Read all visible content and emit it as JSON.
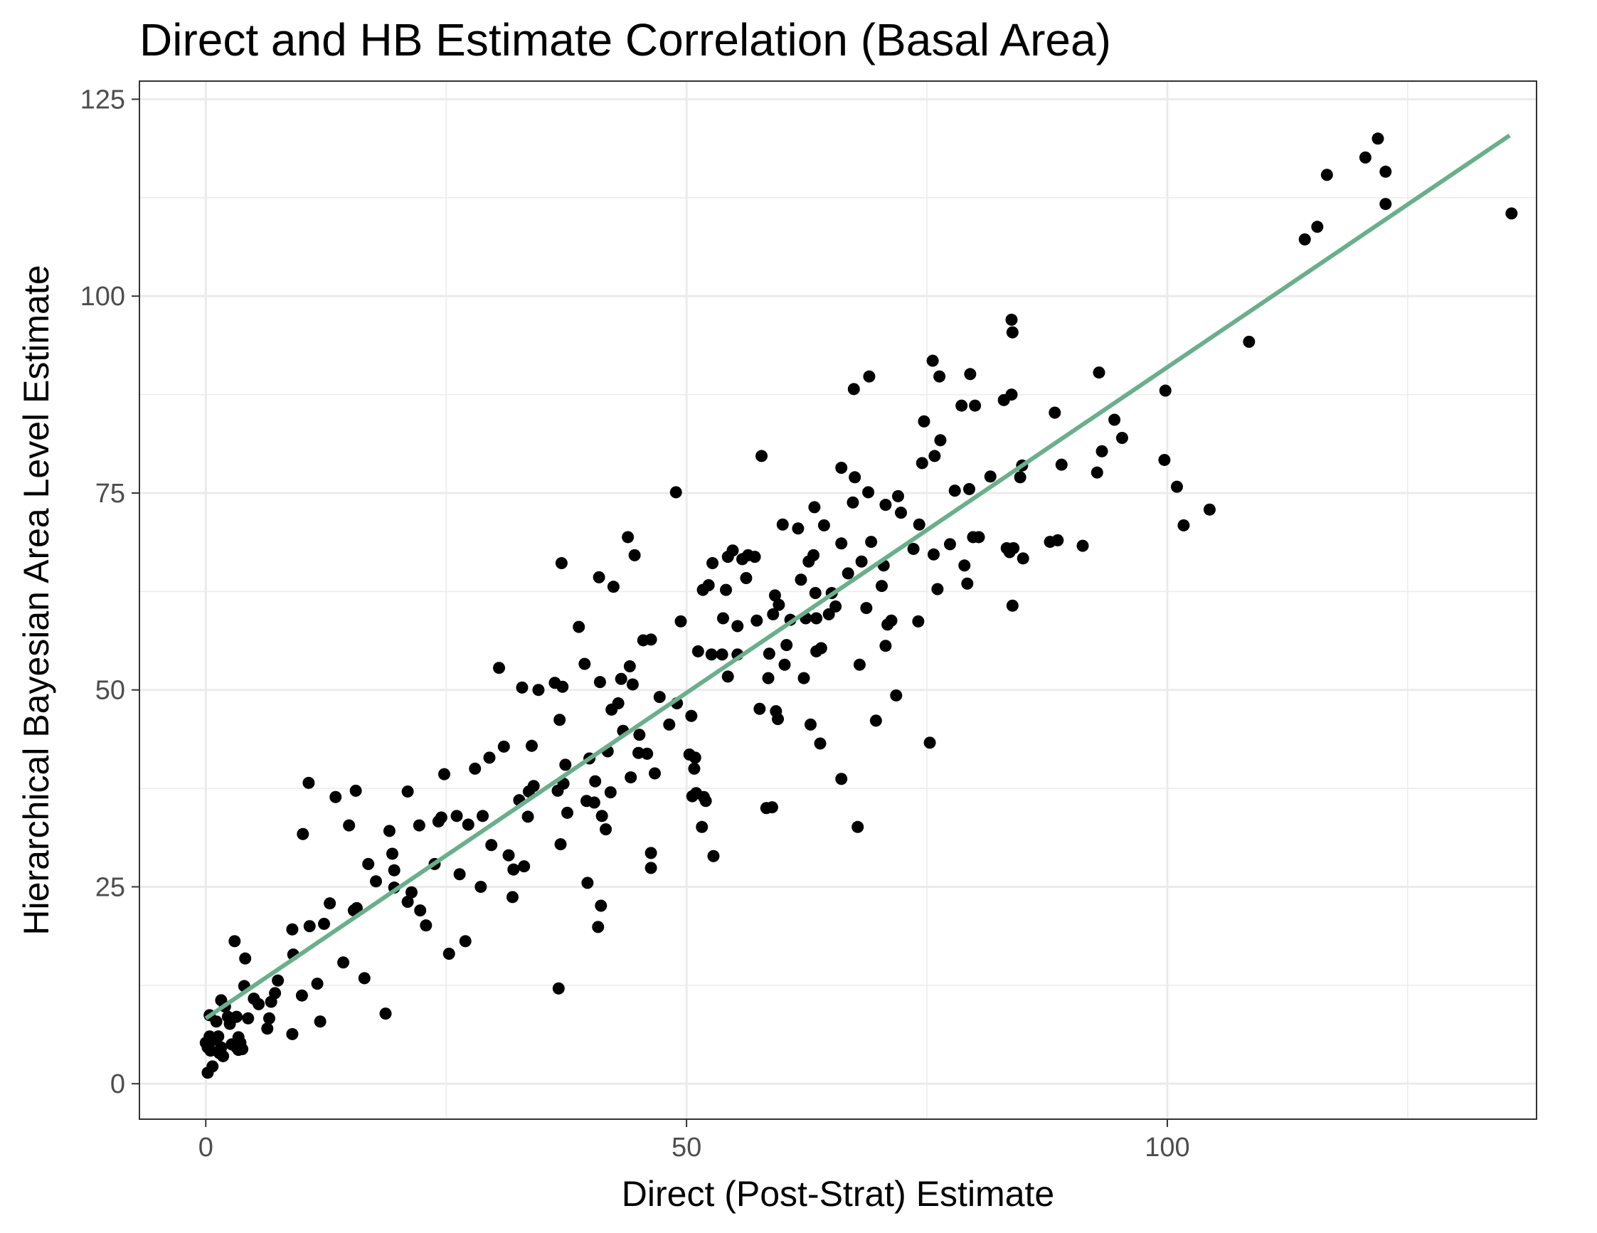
{
  "chart_data": {
    "type": "scatter",
    "title": "Direct and HB Estimate Correlation (Basal Area)",
    "xlabel": "Direct (Post-Strat) Estimate",
    "ylabel": "Hierarchical Bayesian Area Level Estimate",
    "xlim": [
      -6.9,
      138.4
    ],
    "ylim": [
      -4.5,
      127.3
    ],
    "x_ticks": [
      0,
      50,
      100
    ],
    "x_tick_labels": [
      "0",
      "50",
      "100"
    ],
    "y_ticks": [
      0,
      25,
      50,
      75,
      100,
      125
    ],
    "y_tick_labels": [
      "0",
      "25",
      "50",
      "75",
      "100",
      "125"
    ],
    "grid": true,
    "colors": {
      "points": "#000000",
      "fit_line": "#6aaf8c",
      "grid": "#ebebeb",
      "panel_border": "#333333"
    },
    "fit_line": {
      "x": [
        0,
        135.6
      ],
      "y": [
        8.3,
        120.4
      ]
    },
    "points": [
      [
        0.0,
        5.2
      ],
      [
        0.2,
        4.6
      ],
      [
        0.2,
        1.4
      ],
      [
        0.4,
        8.7
      ],
      [
        0.4,
        6.0
      ],
      [
        0.5,
        4.2
      ],
      [
        0.7,
        2.2
      ],
      [
        0.9,
        5.6
      ],
      [
        1.1,
        7.9
      ],
      [
        1.3,
        6.0
      ],
      [
        1.4,
        3.9
      ],
      [
        1.6,
        4.6
      ],
      [
        1.6,
        10.6
      ],
      [
        1.8,
        3.5
      ],
      [
        2.0,
        9.8
      ],
      [
        2.3,
        8.5
      ],
      [
        2.5,
        7.6
      ],
      [
        2.7,
        5.0
      ],
      [
        3.0,
        18.1
      ],
      [
        3.2,
        4.6
      ],
      [
        3.2,
        8.5
      ],
      [
        3.4,
        5.9
      ],
      [
        3.4,
        4.3
      ],
      [
        3.6,
        5.2
      ],
      [
        3.8,
        4.4
      ],
      [
        4.0,
        12.4
      ],
      [
        4.1,
        15.9
      ],
      [
        4.4,
        8.3
      ],
      [
        5.0,
        10.8
      ],
      [
        5.5,
        10.1
      ],
      [
        6.4,
        7.0
      ],
      [
        6.6,
        8.3
      ],
      [
        6.8,
        10.4
      ],
      [
        7.2,
        11.5
      ],
      [
        7.5,
        13.1
      ],
      [
        9.0,
        6.3
      ],
      [
        9.0,
        19.6
      ],
      [
        9.1,
        16.4
      ],
      [
        10.0,
        11.2
      ],
      [
        10.1,
        31.7
      ],
      [
        10.7,
        38.2
      ],
      [
        10.8,
        20.0
      ],
      [
        11.6,
        12.7
      ],
      [
        11.9,
        7.9
      ],
      [
        12.3,
        20.3
      ],
      [
        12.9,
        22.9
      ],
      [
        13.5,
        36.4
      ],
      [
        14.3,
        15.4
      ],
      [
        14.9,
        32.8
      ],
      [
        15.4,
        22.0
      ],
      [
        15.6,
        37.2
      ],
      [
        15.7,
        22.3
      ],
      [
        16.5,
        13.4
      ],
      [
        16.9,
        27.9
      ],
      [
        17.7,
        25.7
      ],
      [
        18.7,
        8.9
      ],
      [
        19.1,
        32.1
      ],
      [
        19.4,
        29.2
      ],
      [
        19.6,
        27.1
      ],
      [
        19.6,
        24.9
      ],
      [
        21.0,
        23.1
      ],
      [
        21.0,
        37.1
      ],
      [
        21.4,
        24.3
      ],
      [
        22.2,
        32.8
      ],
      [
        22.3,
        22.0
      ],
      [
        22.9,
        20.1
      ],
      [
        23.8,
        27.9
      ],
      [
        24.2,
        33.3
      ],
      [
        24.5,
        33.8
      ],
      [
        24.8,
        39.3
      ],
      [
        25.3,
        16.5
      ],
      [
        26.1,
        34.0
      ],
      [
        26.4,
        26.6
      ],
      [
        27.0,
        18.1
      ],
      [
        27.3,
        32.9
      ],
      [
        28.0,
        40.0
      ],
      [
        28.6,
        25.0
      ],
      [
        28.8,
        34.0
      ],
      [
        29.5,
        41.4
      ],
      [
        29.7,
        30.3
      ],
      [
        30.5,
        52.8
      ],
      [
        31.0,
        42.8
      ],
      [
        31.5,
        29.0
      ],
      [
        31.9,
        23.7
      ],
      [
        32.0,
        27.2
      ],
      [
        32.6,
        36.0
      ],
      [
        32.9,
        50.3
      ],
      [
        33.1,
        27.6
      ],
      [
        33.5,
        33.9
      ],
      [
        33.6,
        37.1
      ],
      [
        33.9,
        42.9
      ],
      [
        34.1,
        37.8
      ],
      [
        34.6,
        50.0
      ],
      [
        36.3,
        50.9
      ],
      [
        36.6,
        37.2
      ],
      [
        36.7,
        12.1
      ],
      [
        36.8,
        46.2
      ],
      [
        36.9,
        30.4
      ],
      [
        37.0,
        66.1
      ],
      [
        37.1,
        50.4
      ],
      [
        37.2,
        38.1
      ],
      [
        37.4,
        40.5
      ],
      [
        37.6,
        34.4
      ],
      [
        38.8,
        58.0
      ],
      [
        39.4,
        53.3
      ],
      [
        39.6,
        35.9
      ],
      [
        39.7,
        25.5
      ],
      [
        39.9,
        41.3
      ],
      [
        40.4,
        35.7
      ],
      [
        40.5,
        38.4
      ],
      [
        40.8,
        19.9
      ],
      [
        40.9,
        64.3
      ],
      [
        41.0,
        51.0
      ],
      [
        41.1,
        22.6
      ],
      [
        41.2,
        34.0
      ],
      [
        41.6,
        32.3
      ],
      [
        41.8,
        42.2
      ],
      [
        42.1,
        37.0
      ],
      [
        42.2,
        47.5
      ],
      [
        42.4,
        63.1
      ],
      [
        42.9,
        48.3
      ],
      [
        43.2,
        51.4
      ],
      [
        43.4,
        44.8
      ],
      [
        43.9,
        69.4
      ],
      [
        44.1,
        53.0
      ],
      [
        44.2,
        38.9
      ],
      [
        44.4,
        50.7
      ],
      [
        44.6,
        67.1
      ],
      [
        45.0,
        42.0
      ],
      [
        45.1,
        44.3
      ],
      [
        45.5,
        56.3
      ],
      [
        45.9,
        41.9
      ],
      [
        46.3,
        56.4
      ],
      [
        46.3,
        29.3
      ],
      [
        46.3,
        27.4
      ],
      [
        46.7,
        39.4
      ],
      [
        47.2,
        49.1
      ],
      [
        48.2,
        45.6
      ],
      [
        48.9,
        75.1
      ],
      [
        49.0,
        48.3
      ],
      [
        49.4,
        58.7
      ],
      [
        50.3,
        41.8
      ],
      [
        50.5,
        46.7
      ],
      [
        50.6,
        36.5
      ],
      [
        50.8,
        40.0
      ],
      [
        50.9,
        41.4
      ],
      [
        51.0,
        36.9
      ],
      [
        51.2,
        54.9
      ],
      [
        51.6,
        32.6
      ],
      [
        51.7,
        62.7
      ],
      [
        51.8,
        36.4
      ],
      [
        52.0,
        35.9
      ],
      [
        52.3,
        63.3
      ],
      [
        52.6,
        54.5
      ],
      [
        52.7,
        66.1
      ],
      [
        52.8,
        28.9
      ],
      [
        53.7,
        54.5
      ],
      [
        53.8,
        59.1
      ],
      [
        54.1,
        62.7
      ],
      [
        54.3,
        51.7
      ],
      [
        54.3,
        66.9
      ],
      [
        54.8,
        67.7
      ],
      [
        55.3,
        54.5
      ],
      [
        55.3,
        58.1
      ],
      [
        55.8,
        66.6
      ],
      [
        56.2,
        64.2
      ],
      [
        56.4,
        67.1
      ],
      [
        57.1,
        66.9
      ],
      [
        57.3,
        58.8
      ],
      [
        57.6,
        47.6
      ],
      [
        57.8,
        79.7
      ],
      [
        58.3,
        35.0
      ],
      [
        58.5,
        51.5
      ],
      [
        58.6,
        54.6
      ],
      [
        58.9,
        35.1
      ],
      [
        59.0,
        59.6
      ],
      [
        59.2,
        62.0
      ],
      [
        59.3,
        47.3
      ],
      [
        59.5,
        46.3
      ],
      [
        59.6,
        60.8
      ],
      [
        60.0,
        71.0
      ],
      [
        60.2,
        53.2
      ],
      [
        60.4,
        55.7
      ],
      [
        60.8,
        58.9
      ],
      [
        61.6,
        70.5
      ],
      [
        61.9,
        64.0
      ],
      [
        62.2,
        51.5
      ],
      [
        62.4,
        59.1
      ],
      [
        62.7,
        66.3
      ],
      [
        62.9,
        45.6
      ],
      [
        63.2,
        67.1
      ],
      [
        63.3,
        73.2
      ],
      [
        63.4,
        62.3
      ],
      [
        63.5,
        54.9
      ],
      [
        63.5,
        59.1
      ],
      [
        63.9,
        43.2
      ],
      [
        64.0,
        55.3
      ],
      [
        64.3,
        70.9
      ],
      [
        64.8,
        59.6
      ],
      [
        65.1,
        62.3
      ],
      [
        65.5,
        60.6
      ],
      [
        66.1,
        38.7
      ],
      [
        66.1,
        78.2
      ],
      [
        66.1,
        68.6
      ],
      [
        66.8,
        64.8
      ],
      [
        67.3,
        73.8
      ],
      [
        67.4,
        88.2
      ],
      [
        67.5,
        77.0
      ],
      [
        67.8,
        32.6
      ],
      [
        68.0,
        53.2
      ],
      [
        68.2,
        66.3
      ],
      [
        68.7,
        60.4
      ],
      [
        68.9,
        75.1
      ],
      [
        69.0,
        89.8
      ],
      [
        69.2,
        68.8
      ],
      [
        69.7,
        46.1
      ],
      [
        70.3,
        63.2
      ],
      [
        70.5,
        65.8
      ],
      [
        70.7,
        73.5
      ],
      [
        70.7,
        55.6
      ],
      [
        70.9,
        58.3
      ],
      [
        71.3,
        58.8
      ],
      [
        71.8,
        49.3
      ],
      [
        72.0,
        74.6
      ],
      [
        72.3,
        72.5
      ],
      [
        73.6,
        67.9
      ],
      [
        74.1,
        58.7
      ],
      [
        74.2,
        71.0
      ],
      [
        74.5,
        78.8
      ],
      [
        74.7,
        84.1
      ],
      [
        75.3,
        43.3
      ],
      [
        75.6,
        91.8
      ],
      [
        75.7,
        67.2
      ],
      [
        75.8,
        79.7
      ],
      [
        76.1,
        62.8
      ],
      [
        76.3,
        89.8
      ],
      [
        76.4,
        81.7
      ],
      [
        77.4,
        68.5
      ],
      [
        77.9,
        75.3
      ],
      [
        78.6,
        86.1
      ],
      [
        78.9,
        65.8
      ],
      [
        79.2,
        63.5
      ],
      [
        79.4,
        75.5
      ],
      [
        79.5,
        90.1
      ],
      [
        79.8,
        69.4
      ],
      [
        80.0,
        86.1
      ],
      [
        80.4,
        69.4
      ],
      [
        81.6,
        77.1
      ],
      [
        83.0,
        86.8
      ],
      [
        83.3,
        68.0
      ],
      [
        83.6,
        67.5
      ],
      [
        83.8,
        87.5
      ],
      [
        83.8,
        97.0
      ],
      [
        83.9,
        95.4
      ],
      [
        83.9,
        60.7
      ],
      [
        84.0,
        68.0
      ],
      [
        84.7,
        77.0
      ],
      [
        84.9,
        78.5
      ],
      [
        85.0,
        66.7
      ],
      [
        87.8,
        68.8
      ],
      [
        88.3,
        85.2
      ],
      [
        88.6,
        69.0
      ],
      [
        89.0,
        78.6
      ],
      [
        91.2,
        68.3
      ],
      [
        92.7,
        77.6
      ],
      [
        92.9,
        90.3
      ],
      [
        93.2,
        80.3
      ],
      [
        94.5,
        84.3
      ],
      [
        95.3,
        82.0
      ],
      [
        99.7,
        79.2
      ],
      [
        99.8,
        88.0
      ],
      [
        101.0,
        75.8
      ],
      [
        101.7,
        70.9
      ],
      [
        104.4,
        72.9
      ],
      [
        108.5,
        94.2
      ],
      [
        114.3,
        107.2
      ],
      [
        115.6,
        108.8
      ],
      [
        116.6,
        115.4
      ],
      [
        120.6,
        117.6
      ],
      [
        121.9,
        120.0
      ],
      [
        122.7,
        111.7
      ],
      [
        122.7,
        115.8
      ],
      [
        135.8,
        110.5
      ]
    ]
  }
}
